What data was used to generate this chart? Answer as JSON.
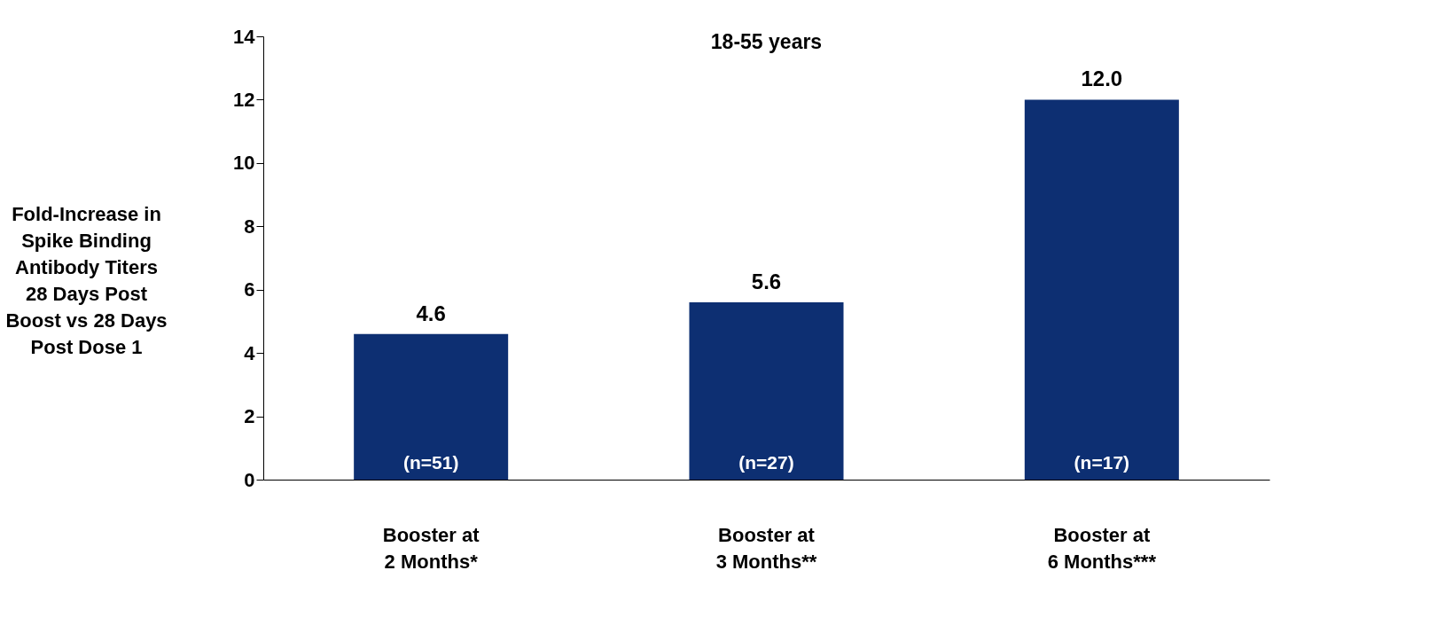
{
  "chart_data": {
    "type": "bar",
    "title": "18-55 years",
    "ylabel": "Fold-Increase in Spike Binding Antibody Titers 28 Days Post Boost vs 28 Days Post Dose 1",
    "categories": [
      "Booster at 2 Months*",
      "Booster at 3 Months**",
      "Booster at 6 Months***"
    ],
    "values": [
      4.6,
      5.6,
      12.0
    ],
    "color": "#0d2f72",
    "value_labels": [
      "4.6",
      "5.6",
      "12.0"
    ],
    "ylim": [
      0,
      14
    ],
    "yticks": [
      0,
      2,
      4,
      6,
      8,
      10,
      12,
      14
    ],
    "grid": false,
    "annotations": [
      {
        "text": "(n=51)",
        "x": "Booster at 2 Months*",
        "y": 0
      },
      {
        "text": "(n=27)",
        "x": "Booster at 3 Months**",
        "y": 0
      },
      {
        "text": "(n=17)",
        "x": "Booster at 6 Months***",
        "y": 0
      }
    ]
  }
}
